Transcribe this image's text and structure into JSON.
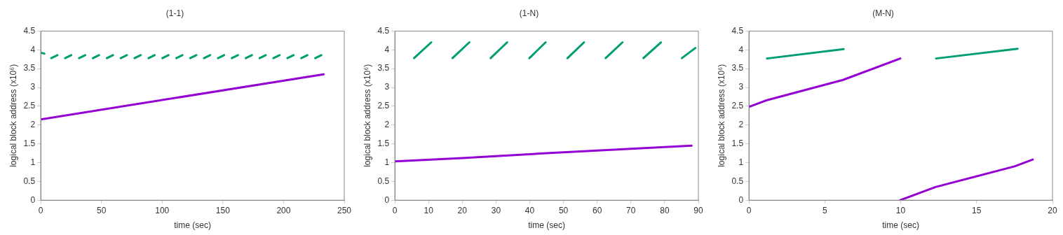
{
  "chart_data": [
    {
      "type": "line",
      "title": "(1-1)",
      "xlabel": "time (sec)",
      "ylabel": "logical block address (x10⁶)",
      "xlim": [
        0,
        250
      ],
      "xticks": [
        0,
        50,
        100,
        150,
        200,
        250
      ],
      "ylim": [
        0,
        4.5
      ],
      "yticks": [
        0,
        0.5,
        1,
        1.5,
        2,
        2.5,
        3,
        3.5,
        4,
        4.5
      ],
      "grid": false,
      "legend": false,
      "marker": "none",
      "line_style": "solid",
      "series": [
        {
          "color": "#009e73",
          "x": [
            0.3,
            3,
            null,
            8.7,
            13.7,
            null,
            20.1,
            25.1,
            null,
            31.6,
            36.6,
            null,
            43.0,
            48.0,
            null,
            54.5,
            59.5,
            null,
            65.9,
            70.9,
            null,
            77.3,
            82.3,
            null,
            88.8,
            93.8,
            null,
            100.2,
            105.2,
            null,
            111.7,
            116.7,
            null,
            123.1,
            128.1,
            null,
            134.5,
            139.5,
            null,
            146.0,
            151.0,
            null,
            157.4,
            162.4,
            null,
            168.9,
            173.9,
            null,
            180.3,
            185.3,
            null,
            191.7,
            196.7,
            null,
            203.2,
            208.2,
            null,
            214.6,
            219.6,
            null,
            226.1,
            231.1
          ],
          "values": [
            3.92,
            3.9,
            null,
            3.78,
            3.86,
            null,
            3.78,
            3.86,
            null,
            3.78,
            3.86,
            null,
            3.78,
            3.86,
            null,
            3.78,
            3.86,
            null,
            3.78,
            3.86,
            null,
            3.78,
            3.86,
            null,
            3.78,
            3.86,
            null,
            3.78,
            3.86,
            null,
            3.78,
            3.86,
            null,
            3.78,
            3.86,
            null,
            3.78,
            3.86,
            null,
            3.78,
            3.86,
            null,
            3.78,
            3.86,
            null,
            3.78,
            3.86,
            null,
            3.78,
            3.86,
            null,
            3.78,
            3.86,
            null,
            3.78,
            3.86,
            null,
            3.78,
            3.86,
            null,
            3.78,
            3.86
          ]
        },
        {
          "color": "#9400d3",
          "x": [
            0,
            233
          ],
          "values": [
            2.15,
            3.35
          ]
        }
      ]
    },
    {
      "type": "line",
      "title": "(1-N)",
      "xlabel": "time (sec)",
      "ylabel": "logical block address (x10⁶)",
      "xlim": [
        0,
        90
      ],
      "xticks": [
        0,
        10,
        20,
        30,
        40,
        50,
        60,
        70,
        80,
        90
      ],
      "ylim": [
        0,
        4.5
      ],
      "yticks": [
        0,
        0.5,
        1,
        1.5,
        2,
        2.5,
        3,
        3.5,
        4,
        4.5
      ],
      "grid": false,
      "legend": false,
      "marker": "none",
      "line_style": "solid",
      "series": [
        {
          "color": "#009e73",
          "x": [
            5.7,
            10.8,
            null,
            17.1,
            22.1,
            null,
            28.4,
            33.3,
            null,
            39.9,
            44.7,
            null,
            51.2,
            56.1,
            null,
            62.5,
            67.5,
            null,
            73.7,
            78.9,
            null,
            85.1,
            89.1
          ],
          "values": [
            3.78,
            4.2,
            null,
            3.78,
            4.2,
            null,
            3.78,
            4.2,
            null,
            3.78,
            4.2,
            null,
            3.78,
            4.2,
            null,
            3.78,
            4.2,
            null,
            3.78,
            4.2,
            null,
            3.78,
            4.05
          ]
        },
        {
          "color": "#9400d3",
          "x": [
            0,
            20,
            45,
            88
          ],
          "values": [
            1.03,
            1.12,
            1.25,
            1.45
          ]
        }
      ]
    },
    {
      "type": "line",
      "title": "(M-N)",
      "xlabel": "time (sec)",
      "ylabel": "logical block address (x10⁶)",
      "xlim": [
        0,
        20
      ],
      "xticks": [
        0,
        5,
        10,
        15,
        20
      ],
      "ylim": [
        0,
        4.5
      ],
      "yticks": [
        0,
        0.5,
        1,
        1.5,
        2,
        2.5,
        3,
        3.5,
        4,
        4.5
      ],
      "grid": false,
      "legend": false,
      "marker": "none",
      "line_style": "solid",
      "series": [
        {
          "color": "#009e73",
          "x": [
            1.19,
            6.24,
            null,
            12.33,
            17.7
          ],
          "values": [
            3.77,
            4.02,
            null,
            3.77,
            4.03
          ]
        },
        {
          "color": "#9400d3",
          "x": [
            0,
            1.1,
            6.2,
            9.97,
            null,
            9.97,
            12.3,
            17.5,
            18.7
          ],
          "values": [
            2.48,
            2.65,
            3.2,
            3.77,
            null,
            0,
            0.35,
            0.9,
            1.08
          ]
        }
      ]
    }
  ]
}
